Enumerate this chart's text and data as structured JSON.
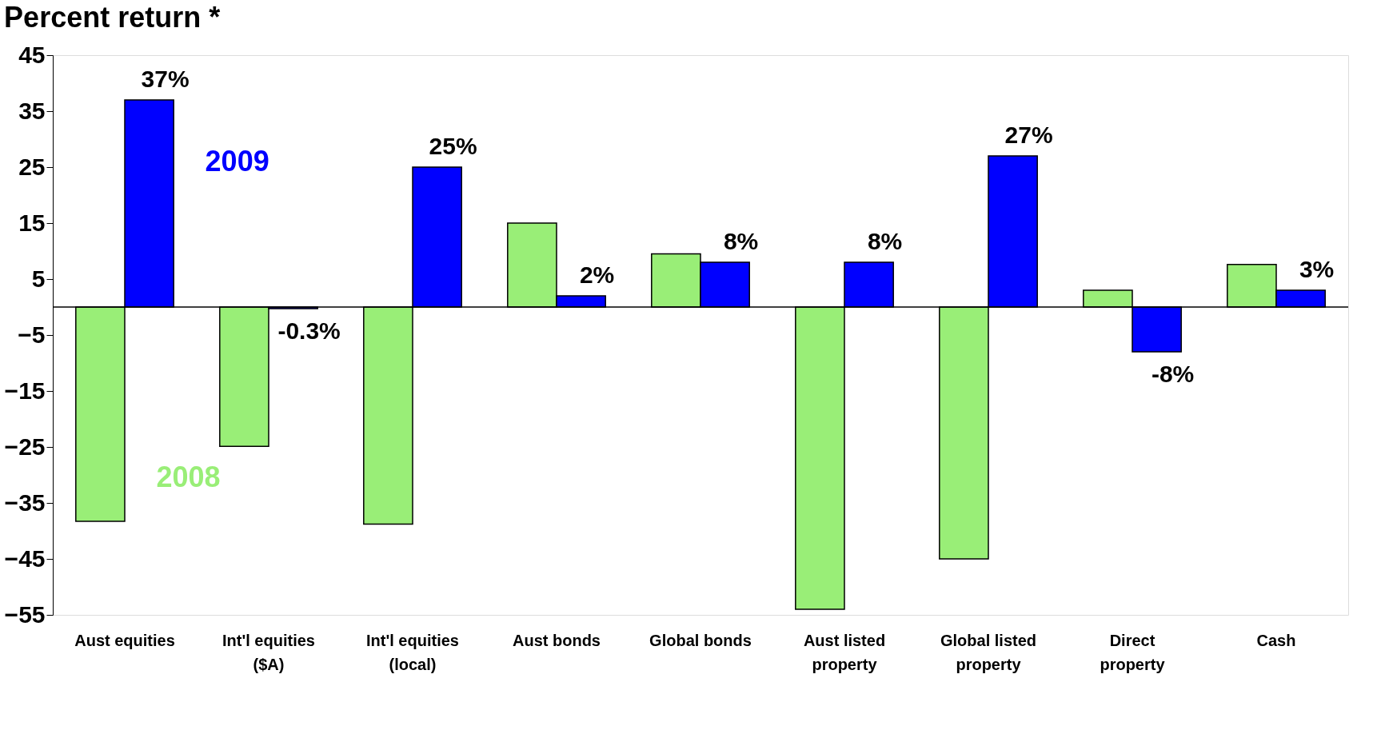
{
  "chart_data": {
    "type": "bar",
    "title": "Percent return *",
    "categories": [
      "Aust equities",
      "Int'l equities\n($A)",
      "Int'l equities\n(local)",
      "Aust bonds",
      "Global bonds",
      "Aust listed\nproperty",
      "Global listed\nproperty",
      "Direct\nproperty",
      "Cash"
    ],
    "series": [
      {
        "name": "2008",
        "color": "#99ee77",
        "values": [
          -38.3,
          -24.9,
          -38.8,
          15.0,
          9.5,
          -54.0,
          -45.0,
          3.0,
          7.6
        ]
      },
      {
        "name": "2009",
        "color": "#0000ff",
        "values": [
          37,
          -0.3,
          25,
          2,
          8,
          8,
          27,
          -8,
          3
        ],
        "value_labels": [
          "37%",
          "-0.3%",
          "25%",
          "2%",
          "8%",
          "8%",
          "27%",
          "-8%",
          "3%"
        ]
      }
    ],
    "ylim": [
      -55,
      45
    ],
    "yticks": [
      -55,
      -45,
      -35,
      -25,
      -15,
      -5,
      5,
      15,
      25,
      35,
      45
    ],
    "grid": false,
    "legend": false
  }
}
